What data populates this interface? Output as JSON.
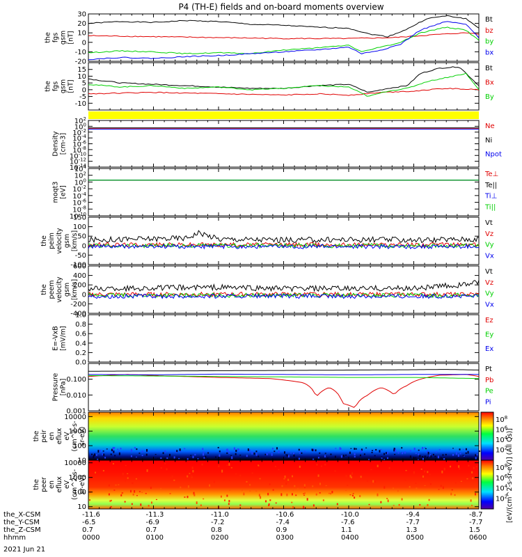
{
  "title": "P4 (TH-E) fields and on-board moments overview",
  "date_label": "2021 Jun 21",
  "colorbar_label": "[eV/(cm^2-s-sr-eV)] (All Qs)]",
  "colors": {
    "black": "#000000",
    "red": "#e00000",
    "green": "#00d000",
    "blue": "#0000ee",
    "bar": "#ffff00"
  },
  "chart_data": [
    {
      "type": "line",
      "id": "p1",
      "ylabel": [
        "the",
        "fgs",
        "gsm",
        "[nT]"
      ],
      "ylim": [
        -20,
        30
      ],
      "yticks": [
        30,
        20,
        10,
        0,
        -10,
        -20
      ],
      "series": [
        {
          "name": "Bt",
          "color": "#000000",
          "points": [
            [
              0,
              20
            ],
            [
              0.5,
              22
            ],
            [
              1,
              21
            ],
            [
              1.5,
              23
            ],
            [
              2,
              22
            ],
            [
              2.5,
              19
            ],
            [
              3,
              18
            ],
            [
              3.5,
              16
            ],
            [
              4,
              15
            ],
            [
              4.3,
              9
            ],
            [
              4.6,
              6
            ],
            [
              4.9,
              14
            ],
            [
              5.2,
              25
            ],
            [
              5.5,
              28
            ],
            [
              5.8,
              25
            ],
            [
              6,
              15
            ]
          ]
        },
        {
          "name": "bz",
          "color": "#e00000",
          "points": [
            [
              0,
              7
            ],
            [
              1,
              6
            ],
            [
              2,
              5
            ],
            [
              3,
              4
            ],
            [
              4,
              4
            ],
            [
              4.7,
              5
            ],
            [
              5.3,
              8
            ],
            [
              5.8,
              10
            ],
            [
              6,
              9
            ]
          ]
        },
        {
          "name": "by",
          "color": "#00d000",
          "points": [
            [
              0,
              -11
            ],
            [
              0.5,
              -9
            ],
            [
              1,
              -10
            ],
            [
              1.5,
              -12
            ],
            [
              2,
              -11
            ],
            [
              2.5,
              -12
            ],
            [
              3,
              -8
            ],
            [
              3.5,
              -6
            ],
            [
              4,
              -3
            ],
            [
              4.2,
              -10
            ],
            [
              4.5,
              -5
            ],
            [
              4.8,
              0
            ],
            [
              5.1,
              10
            ],
            [
              5.5,
              16
            ],
            [
              5.8,
              13
            ],
            [
              6,
              2
            ]
          ]
        },
        {
          "name": "bx",
          "color": "#0000ee",
          "points": [
            [
              0,
              -18
            ],
            [
              0.5,
              -16
            ],
            [
              1,
              -17
            ],
            [
              1.5,
              -15
            ],
            [
              2,
              -14
            ],
            [
              2.5,
              -12
            ],
            [
              3,
              -10
            ],
            [
              3.5,
              -8
            ],
            [
              4,
              -5
            ],
            [
              4.2,
              -12
            ],
            [
              4.5,
              -8
            ],
            [
              4.8,
              -2
            ],
            [
              5.1,
              13
            ],
            [
              5.5,
              22
            ],
            [
              5.8,
              19
            ],
            [
              6,
              5
            ]
          ]
        }
      ]
    },
    {
      "type": "line",
      "id": "p2",
      "ylabel": [
        "the",
        "fgs",
        "gsm",
        "[nT]"
      ],
      "ylim": [
        -15,
        20
      ],
      "yticks": [
        15,
        10,
        5,
        0,
        -5,
        -10
      ],
      "series": [
        {
          "name": "Bt",
          "color": "#000000",
          "points": [
            [
              0,
              8
            ],
            [
              0.5,
              5
            ],
            [
              1,
              4
            ],
            [
              1.5,
              3
            ],
            [
              2,
              2
            ],
            [
              2.5,
              1
            ],
            [
              3,
              1
            ],
            [
              3.5,
              3
            ],
            [
              4,
              4
            ],
            [
              4.3,
              -2
            ],
            [
              4.6,
              1
            ],
            [
              4.9,
              3
            ],
            [
              5.1,
              12
            ],
            [
              5.4,
              16
            ],
            [
              5.7,
              17
            ],
            [
              6,
              3
            ]
          ]
        },
        {
          "name": "Bx",
          "color": "#e00000",
          "points": [
            [
              0,
              -3
            ],
            [
              1,
              -2
            ],
            [
              2,
              -3
            ],
            [
              3,
              -4
            ],
            [
              3.5,
              -3
            ],
            [
              4,
              -4
            ],
            [
              4.5,
              -2
            ],
            [
              5,
              -1
            ],
            [
              5.5,
              1
            ],
            [
              6,
              0
            ]
          ]
        },
        {
          "name": "By",
          "color": "#00d000",
          "points": [
            [
              0,
              4
            ],
            [
              0.5,
              2
            ],
            [
              1,
              3
            ],
            [
              1.5,
              1
            ],
            [
              2,
              2
            ],
            [
              2.5,
              0
            ],
            [
              3,
              1
            ],
            [
              3.5,
              3
            ],
            [
              4,
              2
            ],
            [
              4.3,
              -5
            ],
            [
              4.6,
              -1
            ],
            [
              4.9,
              1
            ],
            [
              5.2,
              6
            ],
            [
              5.5,
              9
            ],
            [
              5.8,
              12
            ],
            [
              6,
              0
            ]
          ]
        }
      ]
    },
    {
      "type": "line",
      "id": "p3",
      "ylabel": [
        "Density",
        "[cm-3]"
      ],
      "ylog": true,
      "ylim_exp": [
        -14,
        2
      ],
      "ytick_exps": [
        2,
        0,
        -2,
        -4,
        -6,
        -8,
        -10,
        -12,
        -14
      ],
      "series": [
        {
          "name": "Ne",
          "color": "#e00000",
          "points": [
            [
              0,
              0.2
            ],
            [
              6,
              0.2
            ]
          ]
        },
        {
          "name": "Ni",
          "color": "#000000",
          "points": [
            [
              0,
              0.3
            ],
            [
              6,
              0.3
            ]
          ]
        },
        {
          "name": "Npot",
          "color": "#0000ee",
          "points": [
            [
              0,
              0.1
            ],
            [
              6,
              0.1
            ]
          ]
        }
      ]
    },
    {
      "type": "line",
      "id": "p4",
      "ylabel": [
        "moqt3",
        "[eV]"
      ],
      "ylog": true,
      "ylim_exp": [
        -10,
        4
      ],
      "ytick_exps": [
        4,
        2,
        0,
        -2,
        -4,
        -6,
        -8,
        -10
      ],
      "series": [
        {
          "name": "Te⊥",
          "color": "#e00000",
          "points": [
            [
              0,
              3.9
            ],
            [
              6,
              3.9
            ]
          ]
        },
        {
          "name": "Te||",
          "color": "#000000",
          "points": [
            [
              0,
              3.6
            ],
            [
              6,
              3.6
            ]
          ]
        },
        {
          "name": "Ti⊥",
          "color": "#0000ee",
          "points": [
            [
              0,
              3.8
            ],
            [
              6,
              3.8
            ]
          ]
        },
        {
          "name": "Ti||",
          "color": "#00d000",
          "points": [
            [
              0,
              3.5
            ],
            [
              6,
              3.5
            ]
          ]
        }
      ]
    },
    {
      "type": "line",
      "id": "p5",
      "ylabel": [
        "the",
        "peim",
        "velocity",
        "gsm",
        "[km/s]"
      ],
      "ylim": [
        -100,
        150
      ],
      "yticks": [
        150,
        100,
        50,
        0,
        -50,
        -100
      ],
      "noisy": true,
      "series": [
        {
          "name": "Vt",
          "color": "#000000",
          "points": [
            [
              0,
              30
            ],
            [
              1.5,
              40
            ],
            [
              1.7,
              70
            ],
            [
              2,
              35
            ],
            [
              3,
              30
            ],
            [
              4,
              32
            ],
            [
              5,
              30
            ],
            [
              6,
              35
            ]
          ]
        },
        {
          "name": "Vz",
          "color": "#e00000",
          "points": [
            [
              0,
              5
            ],
            [
              6,
              5
            ]
          ]
        },
        {
          "name": "Vy",
          "color": "#00d000",
          "points": [
            [
              0,
              0
            ],
            [
              6,
              0
            ]
          ]
        },
        {
          "name": "Vx",
          "color": "#0000ee",
          "points": [
            [
              0,
              -5
            ],
            [
              6,
              -5
            ]
          ]
        }
      ]
    },
    {
      "type": "line",
      "id": "p6",
      "ylabel": [
        "the",
        "peem",
        "velocity",
        "gsm",
        "[km/s]"
      ],
      "ylim": [
        -400,
        600
      ],
      "yticks": [
        600,
        400,
        200,
        0,
        -200,
        -400
      ],
      "noisy": true,
      "series": [
        {
          "name": "Vt",
          "color": "#000000",
          "points": [
            [
              0,
              120
            ],
            [
              2,
              150
            ],
            [
              3,
              120
            ],
            [
              4,
              120
            ],
            [
              5,
              130
            ],
            [
              5.7,
              200
            ],
            [
              6,
              250
            ]
          ]
        },
        {
          "name": "Vz",
          "color": "#e00000",
          "points": [
            [
              0,
              0
            ],
            [
              6,
              0
            ]
          ]
        },
        {
          "name": "Vy",
          "color": "#00d000",
          "points": [
            [
              0,
              -20
            ],
            [
              6,
              -20
            ]
          ]
        },
        {
          "name": "Vx",
          "color": "#0000ee",
          "points": [
            [
              0,
              -40
            ],
            [
              6,
              -40
            ]
          ]
        }
      ]
    },
    {
      "type": "line",
      "id": "p7",
      "ylabel": [
        "E=-VxB",
        "[mV/m]"
      ],
      "ylim": [
        0,
        1
      ],
      "yticks": [
        "1.0",
        "0.8",
        "0.6",
        "0.4",
        "0.2",
        "0.0"
      ],
      "series": [
        {
          "name": "Ez",
          "color": "#e00000",
          "points": []
        },
        {
          "name": "Ey",
          "color": "#00d000",
          "points": []
        },
        {
          "name": "Ex",
          "color": "#0000ee",
          "points": []
        }
      ]
    },
    {
      "type": "line",
      "id": "p8",
      "ylabel": [
        "Pressure",
        "[nPa]"
      ],
      "ylog": true,
      "ylim_exp": [
        -3,
        0
      ],
      "yticks": [
        "0.100",
        "0.010",
        "0.001"
      ],
      "ytick_exps": [
        -1,
        -2,
        -3
      ],
      "series": [
        {
          "name": "Pt",
          "color": "#000000",
          "points": [
            [
              0,
              0.32
            ],
            [
              3,
              0.36
            ],
            [
              5,
              0.4
            ],
            [
              5.5,
              0.42
            ],
            [
              6,
              0.38
            ]
          ]
        },
        {
          "name": "Pb",
          "color": "#e00000",
          "points": [
            [
              0,
              0.15
            ],
            [
              0.6,
              0.2
            ],
            [
              1.2,
              0.16
            ],
            [
              2,
              0.13
            ],
            [
              2.8,
              0.11
            ],
            [
              3.3,
              0.06
            ],
            [
              3.5,
              0.007
            ],
            [
              3.7,
              0.03
            ],
            [
              3.9,
              0.003
            ],
            [
              4.1,
              0.0015
            ],
            [
              4.3,
              0.01
            ],
            [
              4.5,
              0.03
            ],
            [
              4.7,
              0.01
            ],
            [
              4.9,
              0.04
            ],
            [
              5.1,
              0.1
            ],
            [
              5.4,
              0.18
            ],
            [
              5.8,
              0.2
            ],
            [
              6,
              0.15
            ]
          ]
        },
        {
          "name": "Pe",
          "color": "#00d000",
          "points": [
            [
              0,
              0.17
            ],
            [
              1,
              0.16
            ],
            [
              2,
              0.15
            ],
            [
              3,
              0.14
            ],
            [
              4,
              0.13
            ],
            [
              5,
              0.13
            ],
            [
              6,
              0.11
            ]
          ]
        },
        {
          "name": "Pi",
          "color": "#0000ee",
          "points": [
            [
              0,
              0.2
            ],
            [
              1,
              0.19
            ],
            [
              2,
              0.21
            ],
            [
              3,
              0.2
            ],
            [
              4,
              0.19
            ],
            [
              5,
              0.2
            ],
            [
              6,
              0.2
            ]
          ]
        }
      ]
    },
    {
      "type": "heatmap",
      "id": "p9",
      "ylabel": [
        "the",
        "peir",
        "en",
        "eflux",
        "eV",
        "(cm^2-s-",
        "sr-eV)"
      ],
      "ylog": true,
      "ylim": [
        10,
        20000
      ],
      "yticks": [
        "10000",
        "1000",
        "100",
        "10"
      ],
      "ytick_vals": [
        10000,
        1000,
        100,
        10
      ],
      "colorbar_ticks_exp": [
        8,
        6,
        4,
        2
      ]
    },
    {
      "type": "heatmap",
      "id": "p10",
      "ylabel": [
        "the",
        "peer",
        "en",
        "eflux",
        "eV",
        "(cm^2-s-",
        "sr-eV)"
      ],
      "ylog": true,
      "ylim": [
        7,
        15000
      ],
      "yticks": [
        "10000",
        "1000",
        "100",
        "10"
      ],
      "ytick_vals": [
        10000,
        1000,
        100,
        10
      ],
      "colorbar_ticks_exp": [
        8,
        6,
        4,
        2
      ]
    }
  ],
  "x_axis": {
    "rows": [
      {
        "label": "the_X-CSM",
        "values": [
          "-11.6",
          "-11.3",
          "-11.0",
          "-10.6",
          "-10.0",
          "-9.4",
          "-8.7"
        ]
      },
      {
        "label": "the_Y-CSM",
        "values": [
          "-6.5",
          "-6.9",
          "-7.2",
          "-7.4",
          "-7.6",
          "-7.7",
          "-7.7"
        ]
      },
      {
        "label": "the_Z-CSM",
        "values": [
          "0.7",
          "0.7",
          "0.8",
          "0.9",
          "1.1",
          "1.3",
          "1.5"
        ]
      },
      {
        "label": "hhmm",
        "values": [
          "0000",
          "0100",
          "0200",
          "0300",
          "0400",
          "0500",
          "0600"
        ]
      }
    ]
  }
}
